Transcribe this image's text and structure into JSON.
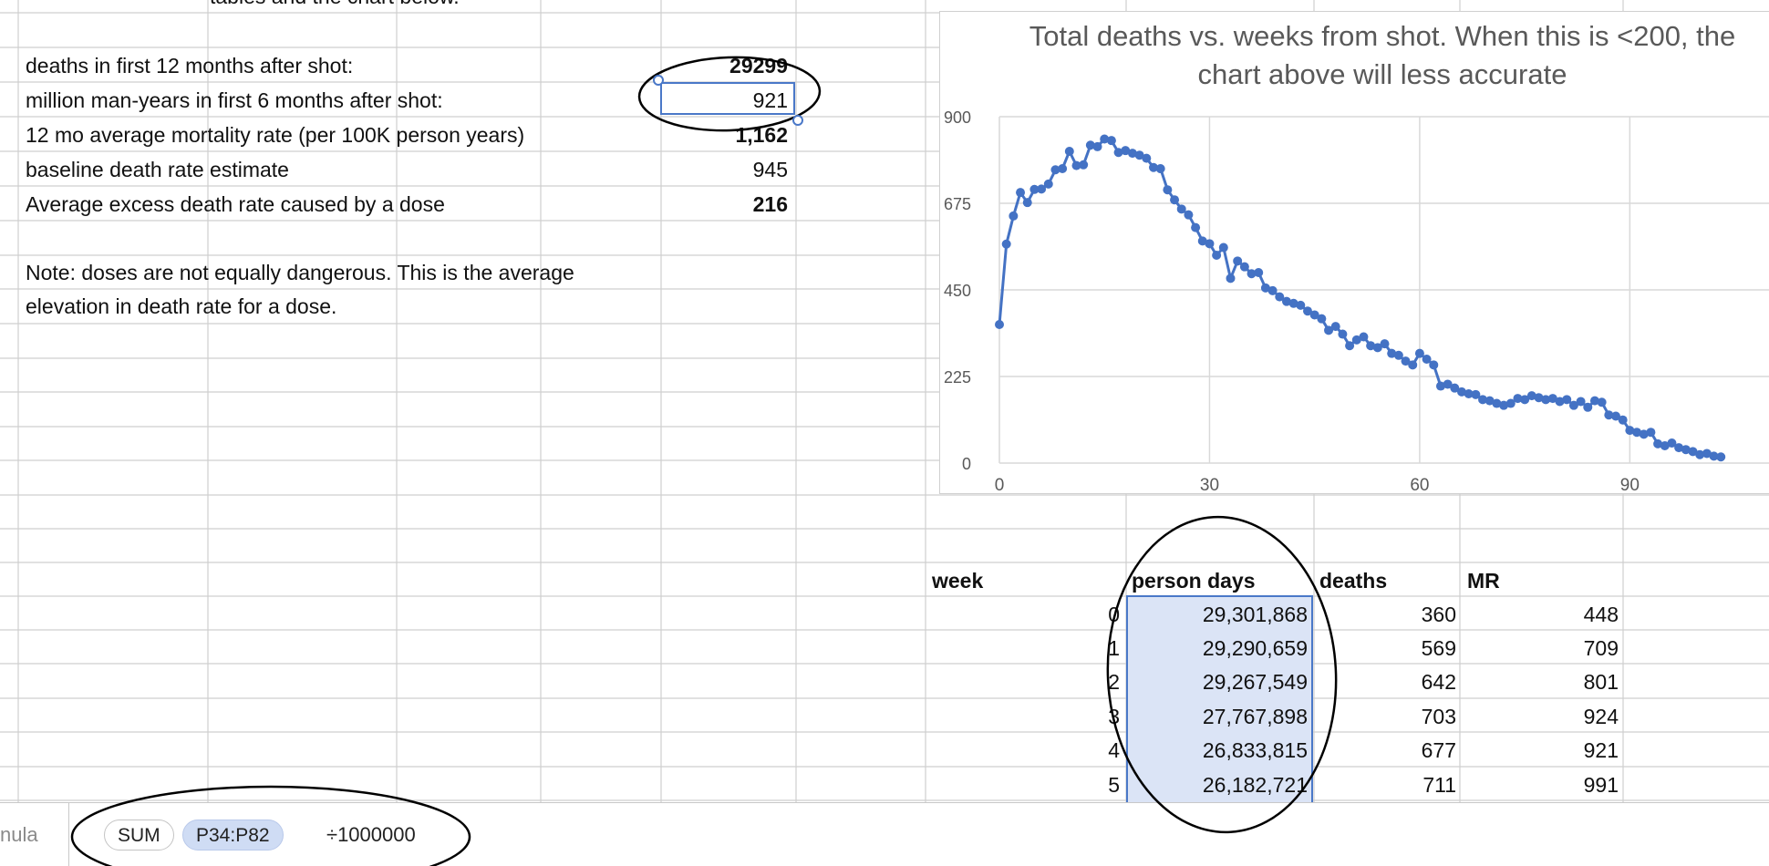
{
  "summary": {
    "top_fragment": "tables and the chart below.",
    "rows": [
      {
        "label": "deaths in first 12 months after shot:",
        "value": "29299",
        "bold": true
      },
      {
        "label": "million man-years in first 6 months after shot:",
        "value": "921",
        "bold": false
      },
      {
        "label": "12 mo average mortality rate (per 100K person years)",
        "value": "1,162",
        "bold": true
      },
      {
        "label": "baseline death rate estimate",
        "value": "945",
        "bold": false
      },
      {
        "label": "Average excess death rate  caused by a dose",
        "value": "216",
        "bold": true
      }
    ],
    "note_line1": "Note: doses are not equally dangerous. This is the average",
    "note_line2": "elevation in death rate for a dose."
  },
  "chart_data": {
    "type": "line",
    "title": "Total deaths vs. weeks from shot. When this is <200, the chart above will less accurate",
    "xlabel": "",
    "ylabel": "",
    "xlim": [
      0,
      110
    ],
    "ylim": [
      0,
      900
    ],
    "xticks": [
      0,
      30,
      60,
      90
    ],
    "yticks": [
      0,
      225,
      450,
      675,
      900
    ],
    "grid": true,
    "series_color": "#4472C4",
    "series": [
      {
        "values": [
          [
            0,
            360
          ],
          [
            1,
            569
          ],
          [
            2,
            642
          ],
          [
            3,
            703
          ],
          [
            4,
            677
          ],
          [
            5,
            711
          ],
          [
            6,
            712
          ],
          [
            7,
            725
          ],
          [
            8,
            762
          ],
          [
            9,
            765
          ],
          [
            10,
            810
          ],
          [
            11,
            773
          ],
          [
            12,
            775
          ],
          [
            13,
            826
          ],
          [
            14,
            822
          ],
          [
            15,
            842
          ],
          [
            16,
            838
          ],
          [
            17,
            807
          ],
          [
            18,
            812
          ],
          [
            19,
            805
          ],
          [
            20,
            800
          ],
          [
            21,
            792
          ],
          [
            22,
            768
          ],
          [
            23,
            765
          ],
          [
            24,
            710
          ],
          [
            25,
            684
          ],
          [
            26,
            660
          ],
          [
            27,
            645
          ],
          [
            28,
            612
          ],
          [
            29,
            577
          ],
          [
            30,
            570
          ],
          [
            31,
            540
          ],
          [
            32,
            560
          ],
          [
            33,
            480
          ],
          [
            34,
            525
          ],
          [
            35,
            510
          ],
          [
            36,
            492
          ],
          [
            37,
            495
          ],
          [
            38,
            455
          ],
          [
            39,
            448
          ],
          [
            40,
            432
          ],
          [
            41,
            420
          ],
          [
            42,
            415
          ],
          [
            43,
            410
          ],
          [
            44,
            395
          ],
          [
            45,
            385
          ],
          [
            46,
            375
          ],
          [
            47,
            345
          ],
          [
            48,
            355
          ],
          [
            49,
            335
          ],
          [
            50,
            305
          ],
          [
            51,
            320
          ],
          [
            52,
            328
          ],
          [
            53,
            305
          ],
          [
            54,
            300
          ],
          [
            55,
            310
          ],
          [
            56,
            285
          ],
          [
            57,
            280
          ],
          [
            58,
            265
          ],
          [
            59,
            255
          ],
          [
            60,
            285
          ],
          [
            61,
            270
          ],
          [
            62,
            255
          ],
          [
            63,
            200
          ],
          [
            64,
            205
          ],
          [
            65,
            195
          ],
          [
            66,
            185
          ],
          [
            67,
            180
          ],
          [
            68,
            178
          ],
          [
            69,
            165
          ],
          [
            70,
            162
          ],
          [
            71,
            155
          ],
          [
            72,
            150
          ],
          [
            73,
            155
          ],
          [
            74,
            168
          ],
          [
            75,
            165
          ],
          [
            76,
            175
          ],
          [
            77,
            170
          ],
          [
            78,
            165
          ],
          [
            79,
            168
          ],
          [
            80,
            160
          ],
          [
            81,
            165
          ],
          [
            82,
            150
          ],
          [
            83,
            160
          ],
          [
            84,
            145
          ],
          [
            85,
            162
          ],
          [
            86,
            158
          ],
          [
            87,
            125
          ],
          [
            88,
            122
          ],
          [
            89,
            112
          ],
          [
            90,
            85
          ],
          [
            91,
            80
          ],
          [
            92,
            75
          ],
          [
            93,
            80
          ],
          [
            94,
            50
          ],
          [
            95,
            45
          ],
          [
            96,
            52
          ],
          [
            97,
            40
          ],
          [
            98,
            35
          ],
          [
            99,
            30
          ],
          [
            100,
            22
          ],
          [
            101,
            25
          ],
          [
            102,
            18
          ],
          [
            103,
            16
          ]
        ]
      }
    ]
  },
  "weekly_table": {
    "headers": {
      "week": "week",
      "person_days": "person days",
      "deaths": "deaths",
      "mr": "MR"
    },
    "rows": [
      {
        "week": "0",
        "person_days": "29,301,868",
        "deaths": "360",
        "mr": "448"
      },
      {
        "week": "1",
        "person_days": "29,290,659",
        "deaths": "569",
        "mr": "709"
      },
      {
        "week": "2",
        "person_days": "29,267,549",
        "deaths": "642",
        "mr": "801"
      },
      {
        "week": "3",
        "person_days": "27,767,898",
        "deaths": "703",
        "mr": "924"
      },
      {
        "week": "4",
        "person_days": "26,833,815",
        "deaths": "677",
        "mr": "921"
      },
      {
        "week": "5",
        "person_days": "26,182,721",
        "deaths": "711",
        "mr": "991"
      }
    ]
  },
  "formula_bar": {
    "label": "nula",
    "function": "SUM",
    "range": "P34:P82",
    "operator": "÷1000000"
  },
  "colors": {
    "accent": "#4472C4",
    "selection_fill": "#dbe4f6",
    "gridline": "#cfcfcf"
  }
}
